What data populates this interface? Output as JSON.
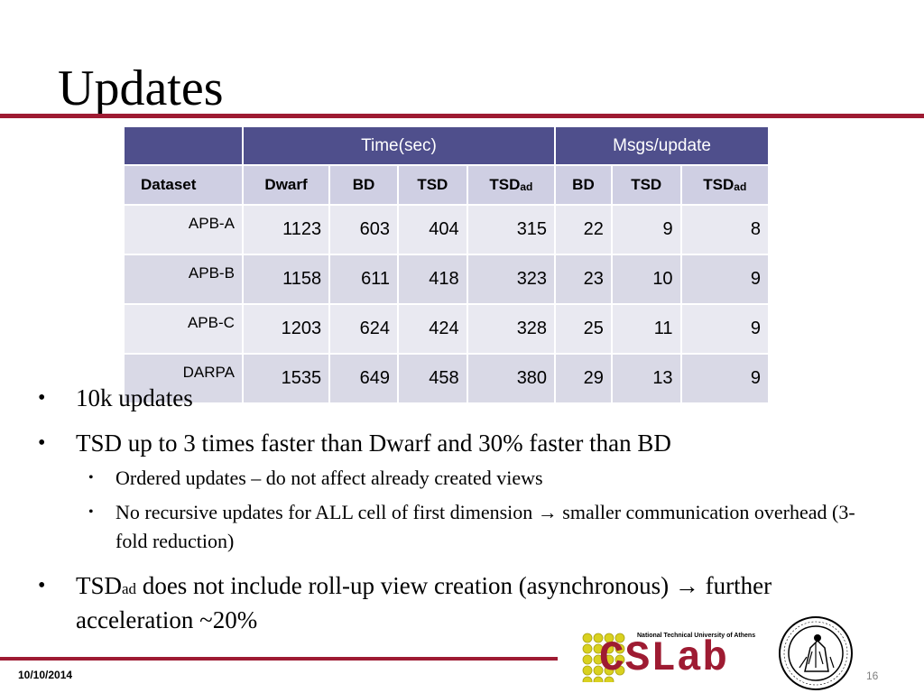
{
  "slide": {
    "title": "Updates",
    "date": "10/10/2014",
    "page_number": "16"
  },
  "table": {
    "group_headers": {
      "time": "Time(sec)",
      "msgs": "Msgs/update"
    },
    "columns": {
      "dataset": "Dataset",
      "time_dwarf": "Dwarf",
      "time_bd": "BD",
      "time_tsd": "TSD",
      "time_tsdad_main": "TSD",
      "time_tsdad_sub": "ad",
      "msgs_bd": "BD",
      "msgs_tsd": "TSD",
      "msgs_tsdad_main": "TSD",
      "msgs_tsdad_sub": "ad"
    },
    "rows": [
      {
        "dataset": "APB-A",
        "time_dwarf": "1123",
        "time_bd": "603",
        "time_tsd": "404",
        "time_tsdad": "315",
        "msgs_bd": "22",
        "msgs_tsd": "9",
        "msgs_tsdad": "8"
      },
      {
        "dataset": "APB-B",
        "time_dwarf": "1158",
        "time_bd": "611",
        "time_tsd": "418",
        "time_tsdad": "323",
        "msgs_bd": "23",
        "msgs_tsd": "10",
        "msgs_tsdad": "9"
      },
      {
        "dataset": "APB-C",
        "time_dwarf": "1203",
        "time_bd": "624",
        "time_tsd": "424",
        "time_tsdad": "328",
        "msgs_bd": "25",
        "msgs_tsd": "11",
        "msgs_tsdad": "9"
      },
      {
        "dataset": "DARPA",
        "time_dwarf": "1535",
        "time_bd": "649",
        "time_tsd": "458",
        "time_tsdad": "380",
        "msgs_bd": "29",
        "msgs_tsd": "13",
        "msgs_tsdad": "9"
      }
    ]
  },
  "bullets": [
    {
      "level": 1,
      "text": "10k updates"
    },
    {
      "level": 1,
      "text": "TSD up to 3 times faster than Dwarf and 30% faster than BD"
    },
    {
      "level": 2,
      "text": "Ordered updates – do not affect already created views"
    },
    {
      "level": 2,
      "text": "No recursive updates for ALL cell of first dimension  → smaller communication overhead (3-fold reduction)"
    },
    {
      "level": 1,
      "main": "TSD",
      "sub": "ad",
      "rest": " does not include roll-up view creation (asynchronous) → further acceleration ~20%"
    }
  ],
  "logo": {
    "text": "CSLab",
    "subtitle": "National Technical University of Athens",
    "dot_color": "#d9d11f",
    "accent_color": "#9e1b32"
  },
  "colors": {
    "rule": "#9e1b32",
    "header_bg": "#4f4f8c",
    "subheader_bg": "#cfcfe3",
    "row_light": "#e9e9f1",
    "row_dark": "#d9d9e6"
  }
}
